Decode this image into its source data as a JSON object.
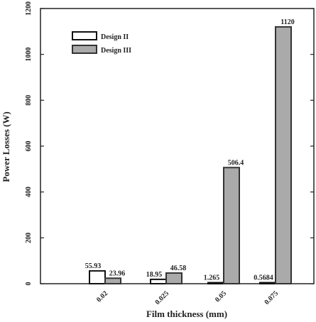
{
  "chart_data": {
    "type": "bar",
    "title": "",
    "xlabel": "Film thickness (mm)",
    "ylabel": "Power Losses (W)",
    "ylim": [
      0,
      1200
    ],
    "yticks": [
      0,
      200,
      400,
      600,
      800,
      1000,
      1200
    ],
    "categories": [
      "0.02",
      "0.025",
      "0.05",
      "0.075"
    ],
    "series": [
      {
        "name": "Design II",
        "values": [
          55.93,
          18.95,
          1.265,
          0.5684
        ],
        "labels": [
          "55.93",
          "18.95",
          "1.265",
          "0.5684"
        ],
        "color": "#ffffff"
      },
      {
        "name": "Design III",
        "values": [
          23.96,
          46.58,
          506.4,
          1120
        ],
        "labels": [
          "23.96",
          "46.58",
          "506.4",
          "1120"
        ],
        "color": "#aaaaaa"
      }
    ],
    "legend_position": "top-left",
    "grid": false
  }
}
